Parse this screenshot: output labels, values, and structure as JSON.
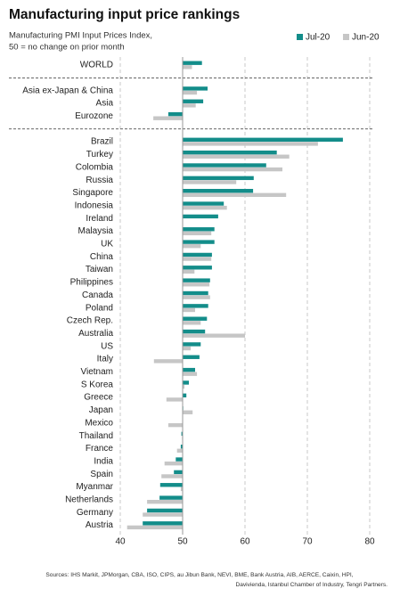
{
  "chart_data": {
    "type": "barh",
    "title": "Manufacturing input price rankings",
    "subtitle": [
      "Manufacturing PMI Input Prices Index,",
      "50 = no change on prior month"
    ],
    "source": [
      "Sources: IHS Markit, JPMorgan, CBA, ISO, CIPS, au Jibun Bank, NEVI, BME, Bank Austria, AIB, AERCE, Caixin, HPI,",
      "Davivienda, Istanbul Chamber of Industry, Tengri Partners."
    ],
    "categories": [
      "WORLD",
      "Asia ex-Japan & China",
      "Asia",
      "Eurozone",
      "Brazil",
      "Turkey",
      "Colombia",
      "Russia",
      "Singapore",
      "Indonesia",
      "Ireland",
      "Malaysia",
      "UK",
      "China",
      "Taiwan",
      "Philippines",
      "Canada",
      "Poland",
      "Czech Rep.",
      "Australia",
      "US",
      "Italy",
      "Vietnam",
      "S Korea",
      "Greece",
      "Japan",
      "Mexico",
      "Thailand",
      "France",
      "India",
      "Spain",
      "Myanmar",
      "Netherlands",
      "Germany",
      "Austria"
    ],
    "series": [
      {
        "name": "Jul-20",
        "color": "#138d8a",
        "values": [
          53.1,
          54.0,
          53.3,
          47.7,
          75.7,
          65.1,
          63.4,
          61.4,
          61.3,
          56.6,
          55.7,
          55.1,
          55.1,
          54.7,
          54.7,
          54.4,
          54.1,
          54.1,
          53.9,
          53.6,
          52.9,
          52.7,
          52.0,
          51.0,
          50.6,
          50.1,
          50.0,
          49.8,
          49.7,
          48.9,
          48.6,
          46.4,
          46.3,
          44.3,
          43.6
        ]
      },
      {
        "name": "Jun-20",
        "color": "#c6c6c6",
        "values": [
          51.5,
          52.3,
          52.1,
          45.3,
          71.7,
          67.1,
          66.0,
          58.6,
          66.6,
          57.1,
          50.0,
          54.6,
          52.9,
          54.6,
          51.9,
          54.3,
          54.4,
          52.0,
          52.9,
          60.0,
          51.3,
          45.4,
          52.3,
          50.3,
          47.4,
          51.6,
          47.7,
          49.9,
          49.1,
          47.1,
          46.6,
          49.7,
          44.3,
          43.6,
          41.1
        ]
      }
    ],
    "xlim": [
      39,
      81
    ],
    "xticks": [
      40,
      50,
      60,
      70,
      80
    ],
    "grid": true,
    "legend": "top-right"
  }
}
